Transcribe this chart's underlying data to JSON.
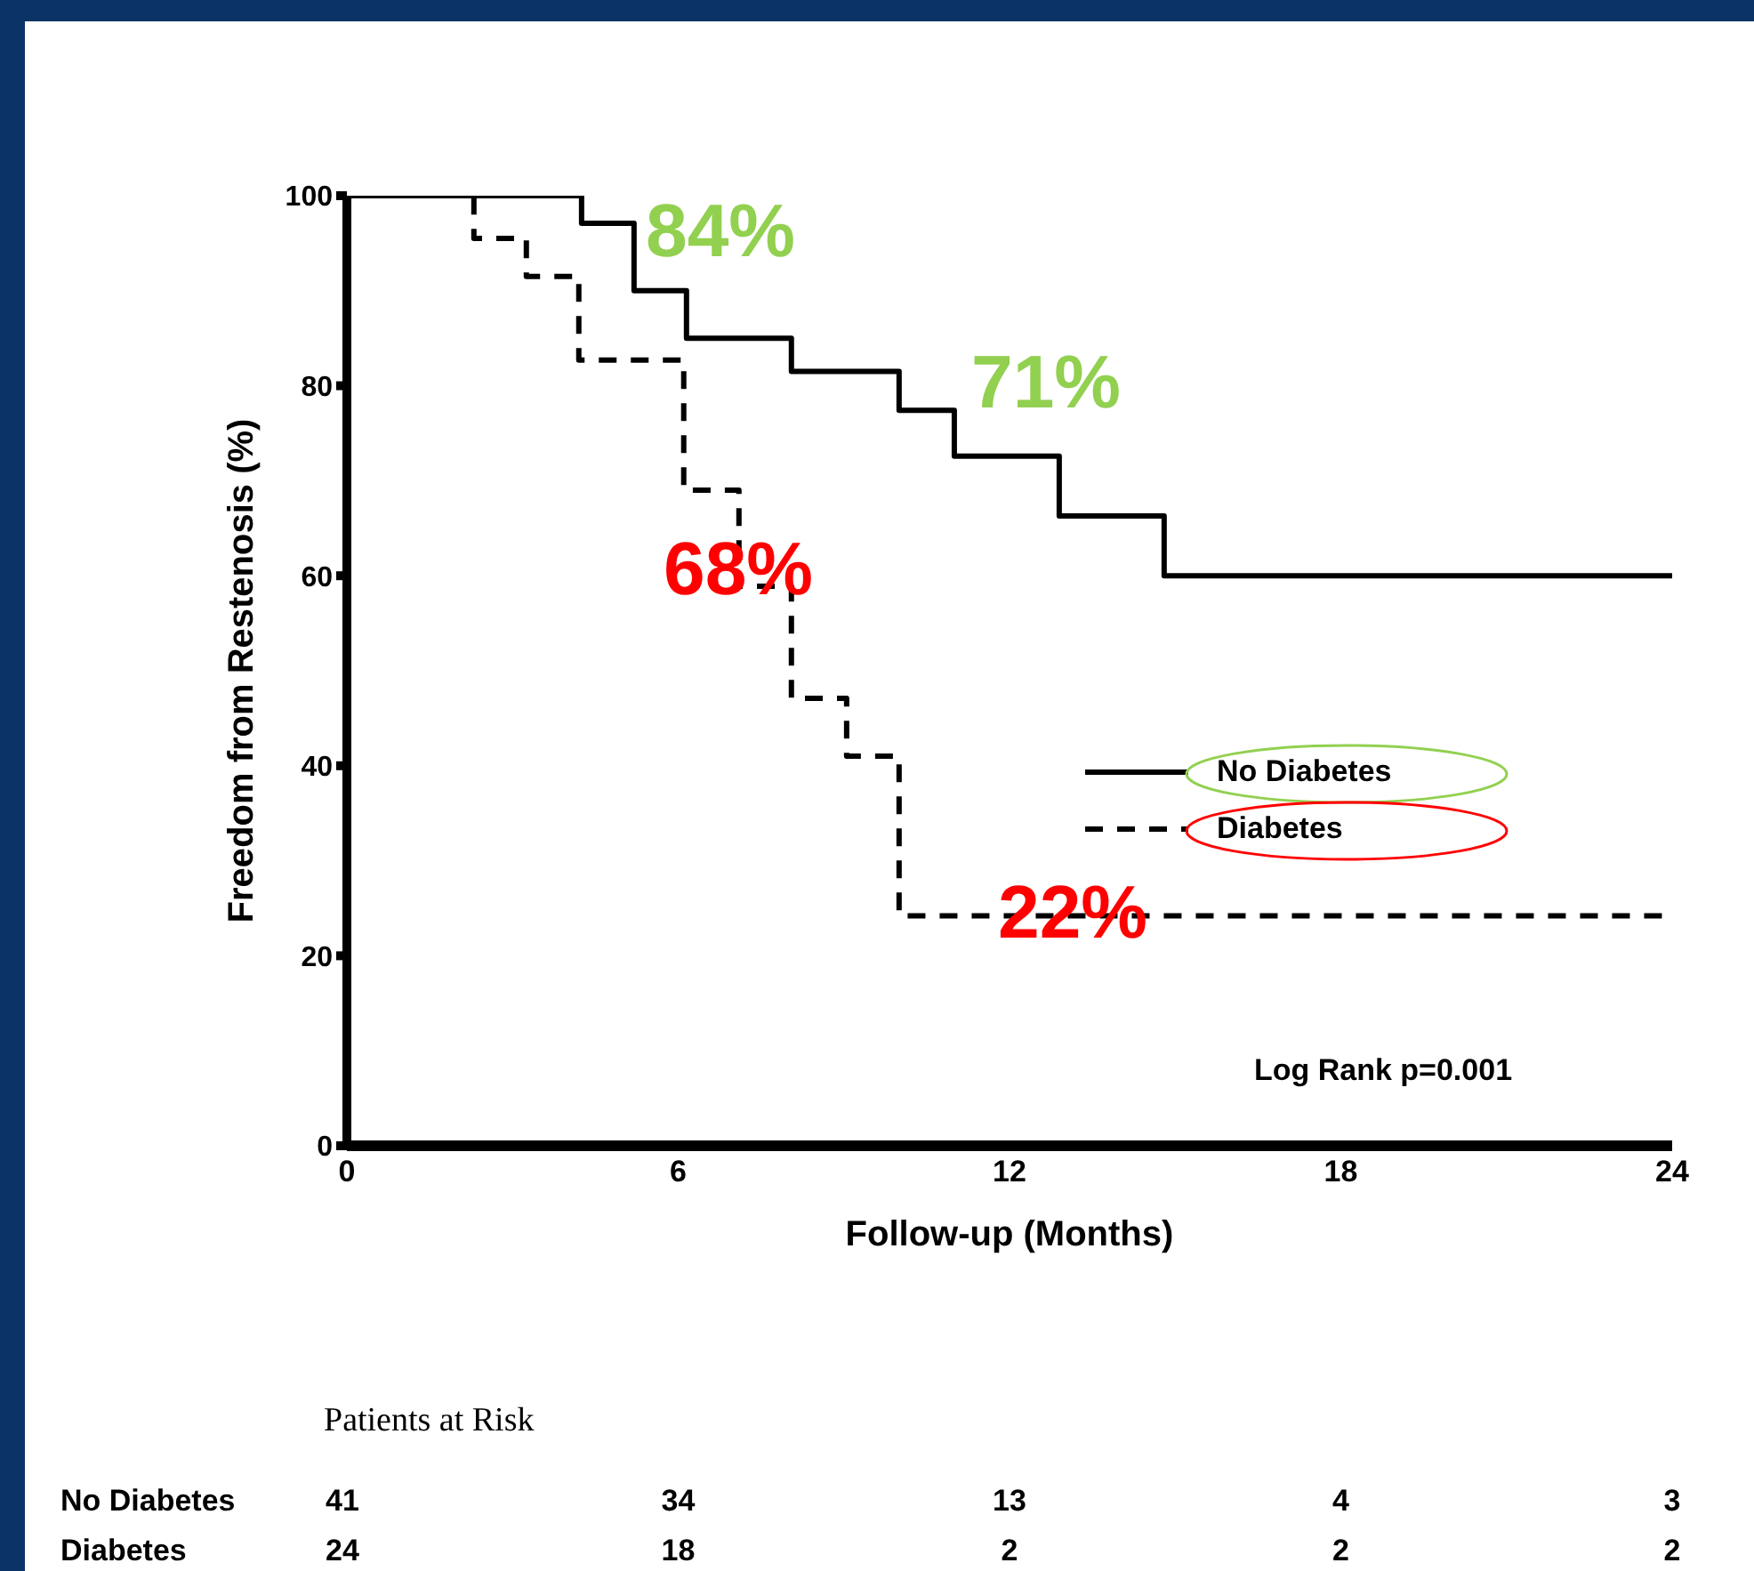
{
  "chart_data": {
    "type": "step",
    "xlabel": "Follow-up (Months)",
    "ylabel": "Freedom from Restenosis (%)",
    "xlim": [
      0,
      24
    ],
    "xticks": [
      0,
      6,
      12,
      18,
      24
    ],
    "ylim": [
      0,
      100
    ],
    "yticks": [
      0,
      20,
      40,
      60,
      80,
      100
    ],
    "grid": false,
    "legend": "right",
    "series": [
      {
        "name": "No Diabetes",
        "color": "#000000",
        "line_style": "solid",
        "x": [
          0,
          4.25,
          5.2,
          6.15,
          8.05,
          10.0,
          11.0,
          12.9,
          14.8,
          24
        ],
        "values": [
          100,
          100,
          97.1,
          90,
          85,
          81.5,
          77.4,
          72.6,
          66.3,
          60
        ]
      },
      {
        "name": "Diabetes",
        "color": "#000000",
        "line_style": "dashed",
        "x": [
          0,
          2.3,
          3.25,
          4.2,
          6.1,
          7.1,
          8.05,
          9.05,
          10.0,
          24
        ],
        "values": [
          100,
          100,
          95.5,
          91.5,
          82.7,
          69,
          58.9,
          47.1,
          41,
          24.2
        ]
      }
    ],
    "annotations": [
      "84%",
      "71%",
      "68%",
      "22%",
      "Log Rank p=0.001",
      "Patients at Risk",
      "No Diabetes",
      "41",
      "34",
      "13",
      "4",
      "3",
      "Diabetes",
      "24",
      "18",
      "2",
      "2",
      "2"
    ]
  }
}
